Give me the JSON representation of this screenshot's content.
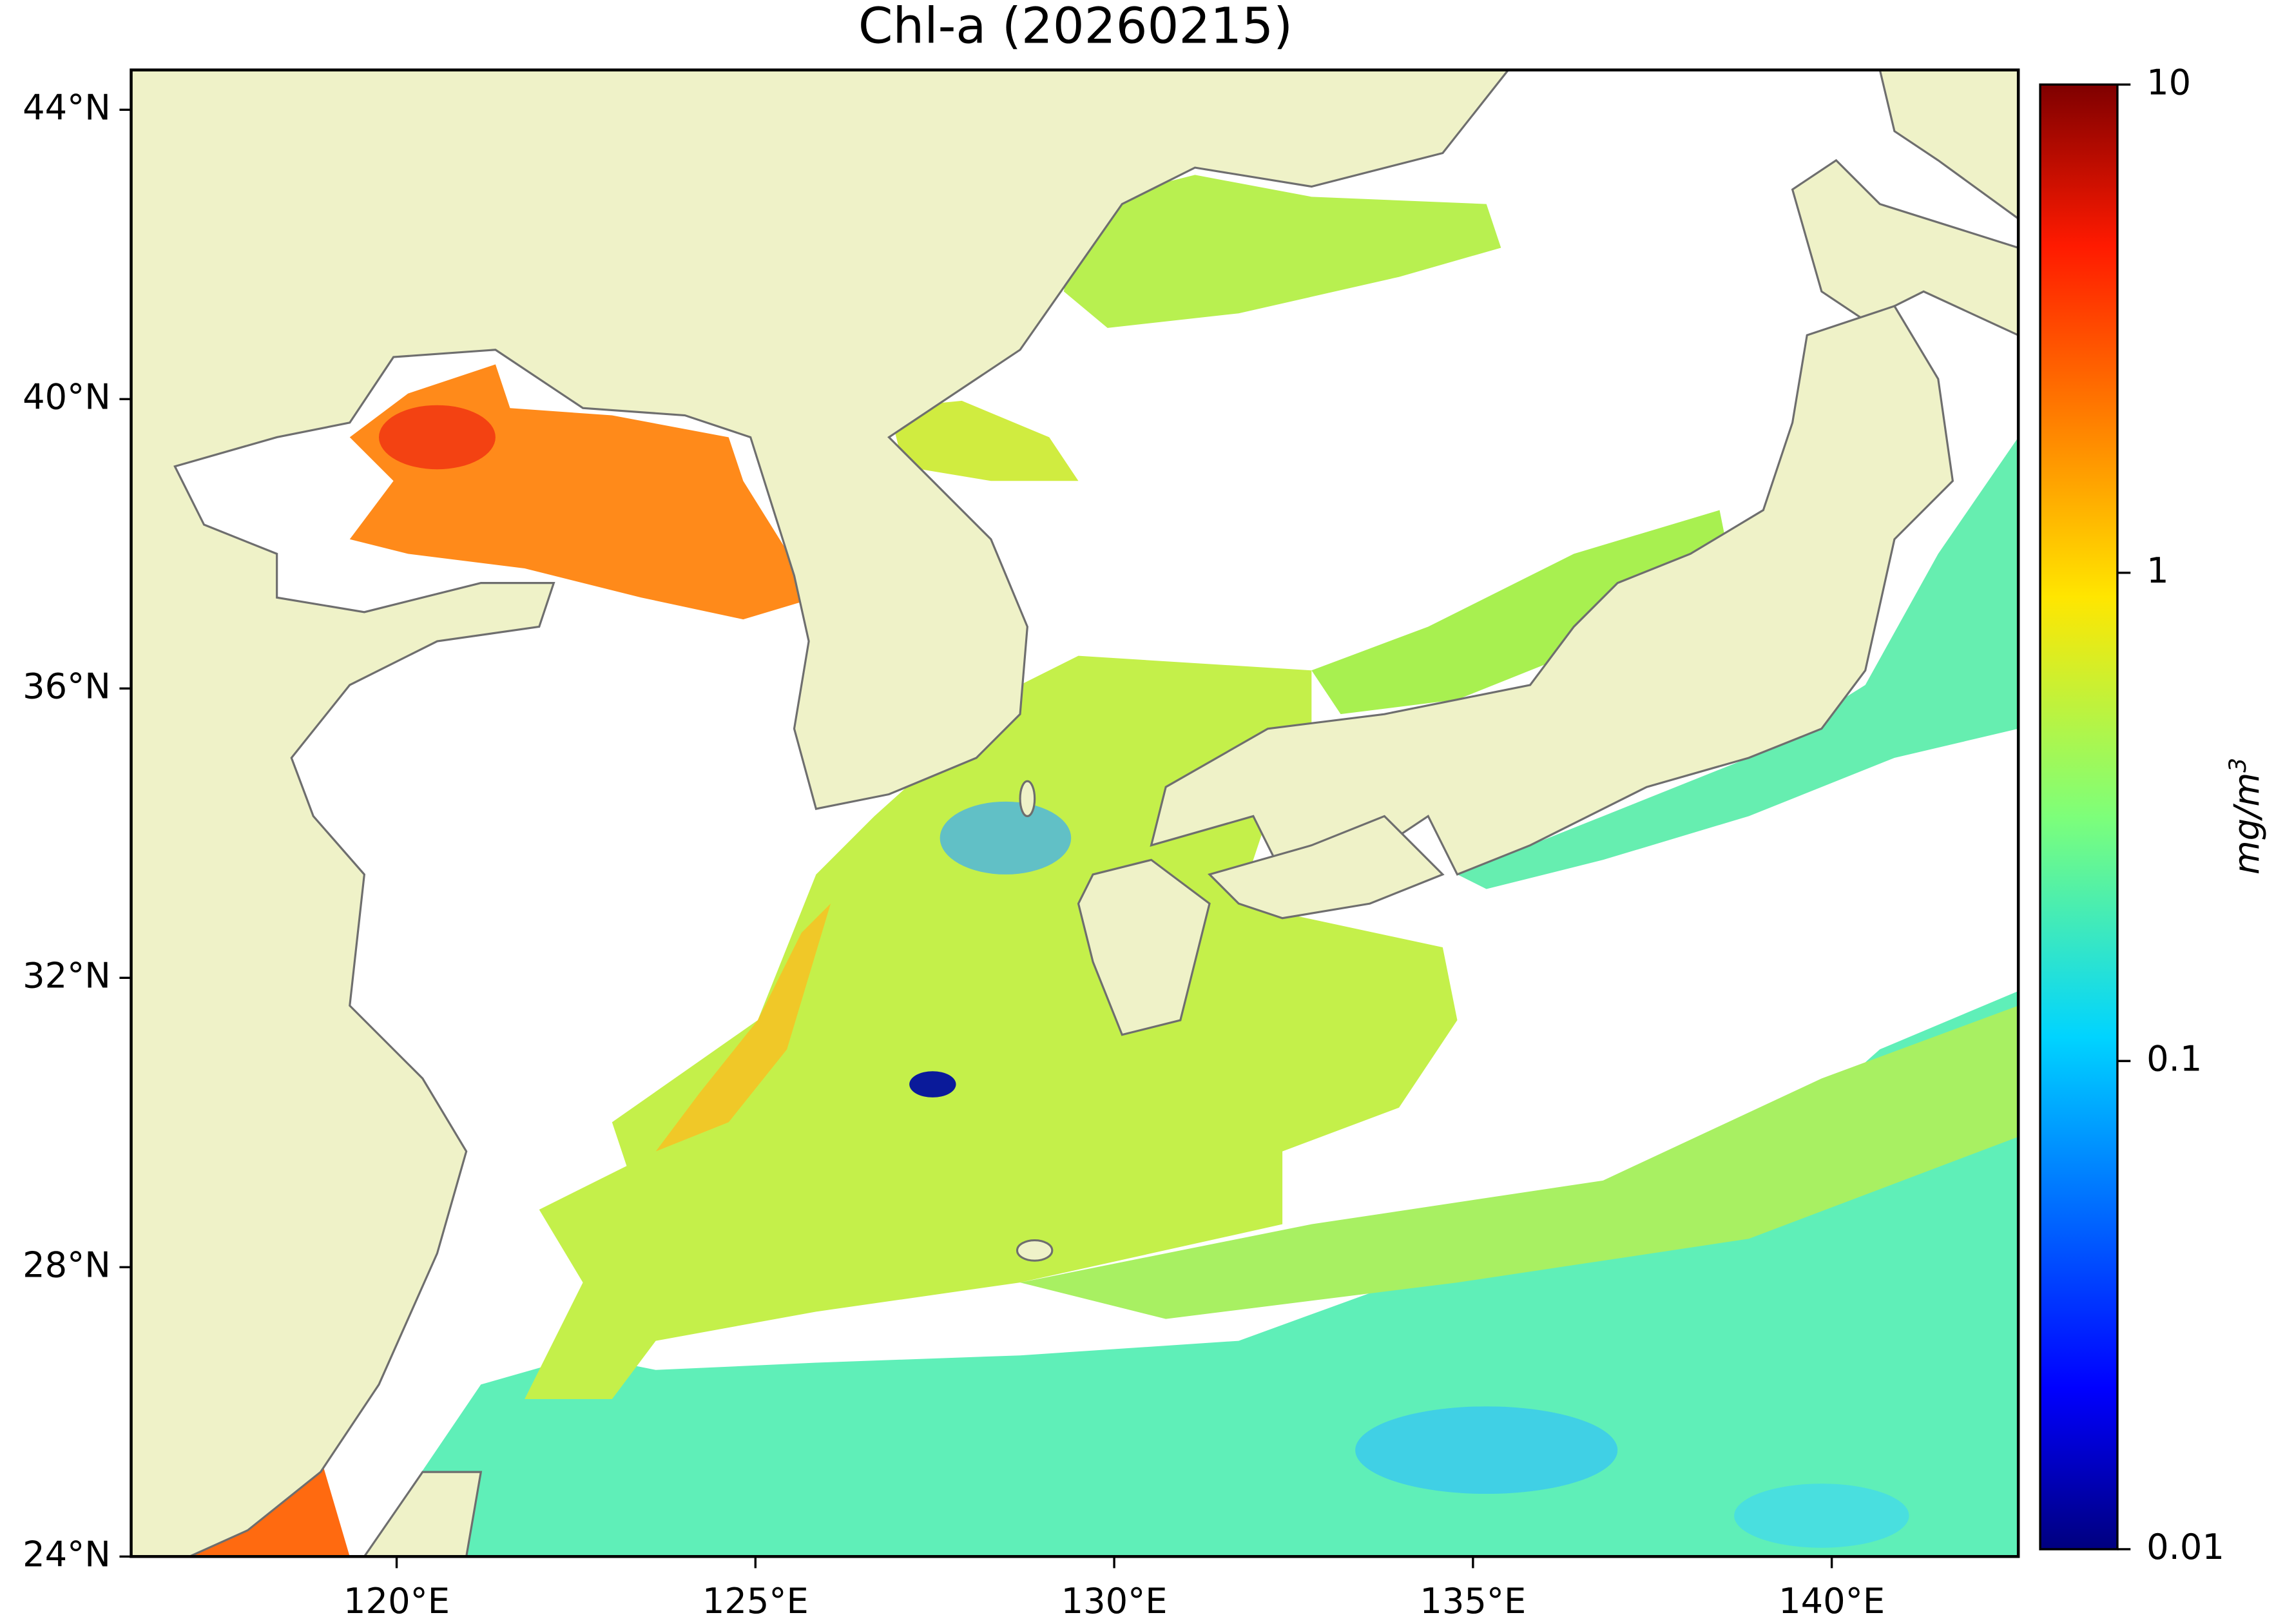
{
  "title": "Chl-a (20260215)",
  "map": {
    "lon_range": [
      116.3,
      142.6
    ],
    "lat_range": [
      24,
      44.55
    ],
    "lon_ticks": [
      {
        "value": 120,
        "label": "120°E"
      },
      {
        "value": 125,
        "label": "125°E"
      },
      {
        "value": 130,
        "label": "130°E"
      },
      {
        "value": 135,
        "label": "135°E"
      },
      {
        "value": 140,
        "label": "140°E"
      }
    ],
    "lat_ticks": [
      {
        "value": 24,
        "label": "24°N"
      },
      {
        "value": 28,
        "label": "28°N"
      },
      {
        "value": 32,
        "label": "32°N"
      },
      {
        "value": 36,
        "label": "36°N"
      },
      {
        "value": 40,
        "label": "40°N"
      },
      {
        "value": 44,
        "label": "44°N"
      }
    ]
  },
  "colorbar": {
    "label": "mg/m",
    "label_superscript": "3",
    "scale": "log",
    "range": [
      0.01,
      10
    ],
    "ticks": [
      0.01,
      0.1,
      1,
      10
    ],
    "colormap": "jet"
  }
}
